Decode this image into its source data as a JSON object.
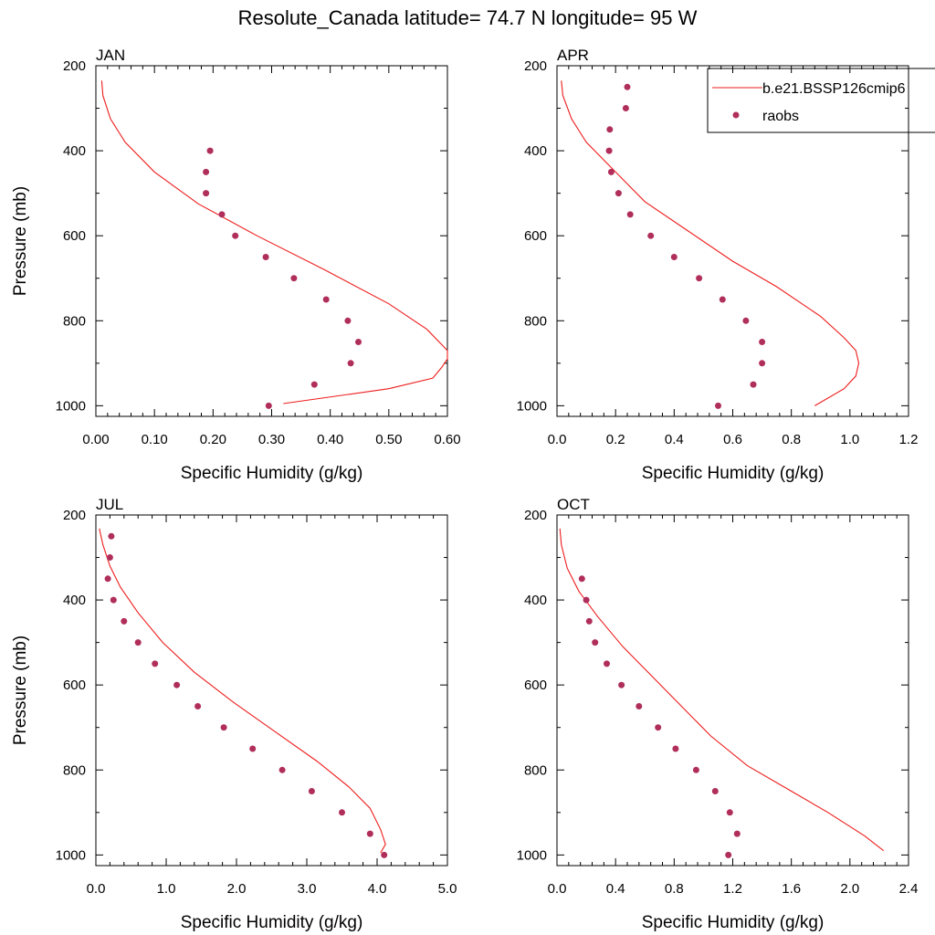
{
  "title": "Resolute_Canada  latitude= 74.7 N longitude= 95 W",
  "colors": {
    "model": "#ee1c1c",
    "obs": "#b02e5a"
  },
  "legend": {
    "placement": "top-right of APR panel",
    "model_label": "b.e21.BSSP126cmip6",
    "obs_label": "raobs"
  },
  "chart_data": [
    {
      "type": "line",
      "panel": "JAN",
      "xlabel": "Specific Humidity (g/kg)",
      "ylabel": "Pressure (mb)",
      "xlim": [
        0,
        0.6
      ],
      "ylim": [
        1025,
        200
      ],
      "x_ticks": [
        0,
        0.1,
        0.2,
        0.3,
        0.4,
        0.5,
        0.6
      ],
      "x_tick_labels": [
        "0.00",
        "0.10",
        "0.20",
        "0.30",
        "0.40",
        "0.50",
        "0.60"
      ],
      "y_ticks": [
        200,
        400,
        600,
        800,
        1000
      ],
      "y_tick_labels": [
        "200",
        "400",
        "600",
        "800",
        "1000"
      ],
      "series": [
        {
          "name": "b.e21.BSSP126cmip6",
          "kind": "line",
          "x": [
            0.01,
            0.012,
            0.025,
            0.05,
            0.1,
            0.175,
            0.275,
            0.39,
            0.5,
            0.565,
            0.6,
            0.6,
            0.59,
            0.575,
            0.5,
            0.32
          ],
          "y": [
            235,
            270,
            325,
            380,
            450,
            525,
            600,
            680,
            760,
            820,
            870,
            890,
            910,
            935,
            960,
            995
          ]
        },
        {
          "name": "raobs",
          "kind": "scatter",
          "x": [
            0.195,
            0.188,
            0.188,
            0.215,
            0.238,
            0.29,
            0.338,
            0.393,
            0.43,
            0.448,
            0.435,
            0.373,
            0.295
          ],
          "y": [
            400,
            450,
            500,
            550,
            600,
            650,
            700,
            750,
            800,
            850,
            900,
            950,
            1000
          ]
        }
      ]
    },
    {
      "type": "line",
      "panel": "APR",
      "xlabel": "Specific Humidity (g/kg)",
      "ylabel": "",
      "xlim": [
        0,
        1.2
      ],
      "ylim": [
        1025,
        200
      ],
      "x_ticks": [
        0,
        0.2,
        0.4,
        0.6,
        0.8,
        1.0,
        1.2
      ],
      "x_tick_labels": [
        "0.0",
        "0.2",
        "0.4",
        "0.6",
        "0.8",
        "1.0",
        "1.2"
      ],
      "y_ticks": [
        200,
        400,
        600,
        800,
        1000
      ],
      "y_tick_labels": [
        "200",
        "400",
        "600",
        "800",
        "1000"
      ],
      "series": [
        {
          "name": "b.e21.BSSP126cmip6",
          "kind": "line",
          "x": [
            0.015,
            0.02,
            0.05,
            0.1,
            0.2,
            0.3,
            0.45,
            0.6,
            0.75,
            0.9,
            0.98,
            1.02,
            1.03,
            1.02,
            0.98,
            0.88
          ],
          "y": [
            235,
            270,
            325,
            380,
            450,
            520,
            590,
            660,
            720,
            790,
            840,
            870,
            900,
            930,
            960,
            1000
          ]
        },
        {
          "name": "raobs",
          "kind": "scatter",
          "x": [
            0.24,
            0.235,
            0.18,
            0.178,
            0.185,
            0.21,
            0.25,
            0.32,
            0.4,
            0.485,
            0.565,
            0.645,
            0.7,
            0.7,
            0.67,
            0.55
          ],
          "y": [
            250,
            300,
            350,
            400,
            450,
            500,
            550,
            600,
            650,
            700,
            750,
            800,
            850,
            900,
            950,
            1000
          ]
        }
      ]
    },
    {
      "type": "line",
      "panel": "JUL",
      "xlabel": "Specific Humidity (g/kg)",
      "ylabel": "Pressure (mb)",
      "xlim": [
        0,
        5.0
      ],
      "ylim": [
        1025,
        200
      ],
      "x_ticks": [
        0,
        1,
        2,
        3,
        4,
        5
      ],
      "x_tick_labels": [
        "0.0",
        "1.0",
        "2.0",
        "3.0",
        "4.0",
        "5.0"
      ],
      "y_ticks": [
        200,
        400,
        600,
        800,
        1000
      ],
      "y_tick_labels": [
        "200",
        "400",
        "600",
        "800",
        "1000"
      ],
      "series": [
        {
          "name": "b.e21.BSSP126cmip6",
          "kind": "line",
          "x": [
            0.05,
            0.1,
            0.2,
            0.35,
            0.6,
            0.95,
            1.4,
            1.95,
            2.55,
            3.15,
            3.6,
            3.9,
            4.05,
            4.12,
            4.05
          ],
          "y": [
            232,
            270,
            320,
            370,
            430,
            500,
            570,
            640,
            710,
            780,
            840,
            890,
            940,
            975,
            995
          ]
        },
        {
          "name": "raobs",
          "kind": "scatter",
          "x": [
            0.22,
            0.2,
            0.17,
            0.25,
            0.4,
            0.6,
            0.84,
            1.15,
            1.45,
            1.82,
            2.23,
            2.65,
            3.07,
            3.5,
            3.9,
            4.1
          ],
          "y": [
            250,
            300,
            350,
            400,
            450,
            500,
            550,
            600,
            650,
            700,
            750,
            800,
            850,
            900,
            950,
            1000
          ]
        }
      ]
    },
    {
      "type": "line",
      "panel": "OCT",
      "xlabel": "Specific Humidity (g/kg)",
      "ylabel": "",
      "xlim": [
        0,
        2.4
      ],
      "ylim": [
        1025,
        200
      ],
      "x_ticks": [
        0,
        0.4,
        0.8,
        1.2,
        1.6,
        2.0,
        2.4
      ],
      "x_tick_labels": [
        "0.0",
        "0.4",
        "0.8",
        "1.2",
        "1.6",
        "2.0",
        "2.4"
      ],
      "y_ticks": [
        200,
        400,
        600,
        800,
        1000
      ],
      "y_tick_labels": [
        "200",
        "400",
        "600",
        "800",
        "1000"
      ],
      "series": [
        {
          "name": "b.e21.BSSP126cmip6",
          "kind": "line",
          "x": [
            0.02,
            0.03,
            0.07,
            0.15,
            0.28,
            0.45,
            0.65,
            0.85,
            1.05,
            1.3,
            1.6,
            1.85,
            2.1,
            2.23
          ],
          "y": [
            232,
            270,
            325,
            380,
            440,
            510,
            580,
            650,
            720,
            790,
            850,
            900,
            955,
            990
          ]
        },
        {
          "name": "raobs",
          "kind": "scatter",
          "x": [
            0.17,
            0.2,
            0.22,
            0.26,
            0.34,
            0.44,
            0.56,
            0.69,
            0.81,
            0.95,
            1.08,
            1.18,
            1.23,
            1.17
          ],
          "y": [
            350,
            400,
            450,
            500,
            550,
            600,
            650,
            700,
            750,
            800,
            850,
            900,
            950,
            1000
          ]
        }
      ]
    }
  ]
}
